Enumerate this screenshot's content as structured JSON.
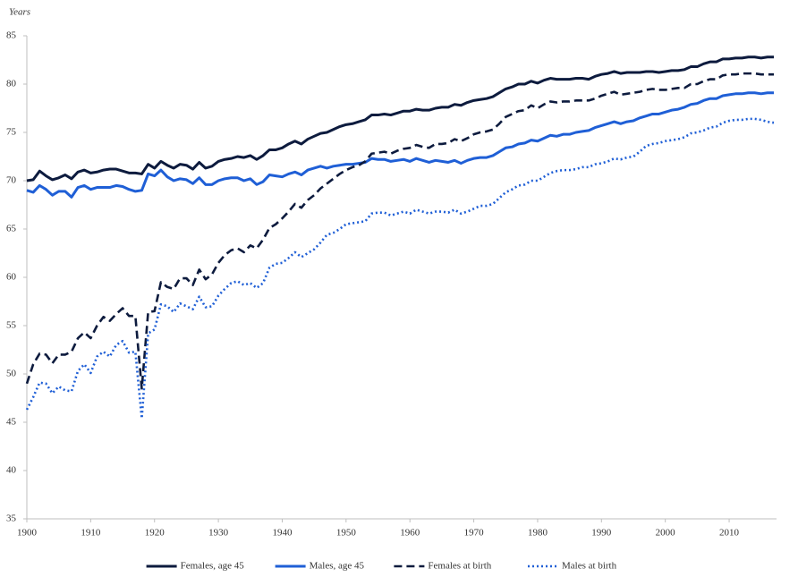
{
  "chart_data": {
    "type": "line",
    "y_label": "Years",
    "x": [
      1900,
      1901,
      1902,
      1903,
      1904,
      1905,
      1906,
      1907,
      1908,
      1909,
      1910,
      1911,
      1912,
      1913,
      1914,
      1915,
      1916,
      1917,
      1918,
      1919,
      1920,
      1921,
      1922,
      1923,
      1924,
      1925,
      1926,
      1927,
      1928,
      1929,
      1930,
      1931,
      1932,
      1933,
      1934,
      1935,
      1936,
      1937,
      1938,
      1939,
      1940,
      1941,
      1942,
      1943,
      1944,
      1945,
      1946,
      1947,
      1948,
      1949,
      1950,
      1951,
      1952,
      1953,
      1954,
      1955,
      1956,
      1957,
      1958,
      1959,
      1960,
      1961,
      1962,
      1963,
      1964,
      1965,
      1966,
      1967,
      1968,
      1969,
      1970,
      1971,
      1972,
      1973,
      1974,
      1975,
      1976,
      1977,
      1978,
      1979,
      1980,
      1981,
      1982,
      1983,
      1984,
      1985,
      1986,
      1987,
      1988,
      1989,
      1990,
      1991,
      1992,
      1993,
      1994,
      1995,
      1996,
      1997,
      1998,
      1999,
      2000,
      2001,
      2002,
      2003,
      2004,
      2005,
      2006,
      2007,
      2008,
      2009,
      2010,
      2011,
      2012,
      2013,
      2014,
      2015,
      2016,
      2017
    ],
    "series": [
      {
        "name": "Females, age 45",
        "color": "#0d1b3e",
        "style": "solid",
        "values": [
          70.0,
          70.1,
          71.0,
          70.5,
          70.1,
          70.3,
          70.6,
          70.2,
          70.9,
          71.1,
          70.8,
          70.9,
          71.1,
          71.2,
          71.2,
          71.0,
          70.8,
          70.8,
          70.7,
          71.7,
          71.3,
          72.0,
          71.6,
          71.3,
          71.7,
          71.6,
          71.2,
          71.9,
          71.3,
          71.5,
          72.0,
          72.2,
          72.3,
          72.5,
          72.4,
          72.6,
          72.2,
          72.6,
          73.2,
          73.2,
          73.4,
          73.8,
          74.1,
          73.8,
          74.3,
          74.6,
          74.9,
          75.0,
          75.3,
          75.6,
          75.8,
          75.9,
          76.1,
          76.3,
          76.8,
          76.8,
          76.9,
          76.8,
          77.0,
          77.2,
          77.2,
          77.4,
          77.3,
          77.3,
          77.5,
          77.6,
          77.6,
          77.9,
          77.8,
          78.1,
          78.3,
          78.4,
          78.5,
          78.7,
          79.1,
          79.5,
          79.7,
          80.0,
          80.0,
          80.3,
          80.1,
          80.4,
          80.6,
          80.5,
          80.5,
          80.5,
          80.6,
          80.6,
          80.5,
          80.8,
          81.0,
          81.1,
          81.3,
          81.1,
          81.2,
          81.2,
          81.2,
          81.3,
          81.3,
          81.2,
          81.3,
          81.4,
          81.4,
          81.5,
          81.8,
          81.8,
          82.1,
          82.3,
          82.3,
          82.6,
          82.6,
          82.7,
          82.7,
          82.8,
          82.8,
          82.7,
          82.8,
          82.8
        ]
      },
      {
        "name": "Males, age 45",
        "color": "#1f5fd6",
        "style": "solid",
        "values": [
          69.0,
          68.8,
          69.5,
          69.1,
          68.5,
          68.9,
          68.9,
          68.3,
          69.3,
          69.5,
          69.1,
          69.3,
          69.3,
          69.3,
          69.5,
          69.4,
          69.1,
          68.9,
          69.0,
          70.7,
          70.5,
          71.1,
          70.4,
          70.0,
          70.2,
          70.1,
          69.7,
          70.3,
          69.6,
          69.6,
          70.0,
          70.2,
          70.3,
          70.3,
          70.0,
          70.2,
          69.6,
          69.9,
          70.6,
          70.5,
          70.4,
          70.7,
          70.9,
          70.6,
          71.1,
          71.3,
          71.5,
          71.3,
          71.5,
          71.6,
          71.7,
          71.7,
          71.8,
          71.9,
          72.3,
          72.2,
          72.2,
          72.0,
          72.1,
          72.2,
          72.0,
          72.3,
          72.1,
          71.9,
          72.1,
          72.0,
          71.9,
          72.1,
          71.8,
          72.1,
          72.3,
          72.4,
          72.4,
          72.6,
          73.0,
          73.4,
          73.5,
          73.8,
          73.9,
          74.2,
          74.1,
          74.4,
          74.7,
          74.6,
          74.8,
          74.8,
          75.0,
          75.1,
          75.2,
          75.5,
          75.7,
          75.9,
          76.1,
          75.9,
          76.1,
          76.2,
          76.5,
          76.7,
          76.9,
          76.9,
          77.1,
          77.3,
          77.4,
          77.6,
          77.9,
          78.0,
          78.3,
          78.5,
          78.5,
          78.8,
          78.9,
          79.0,
          79.0,
          79.1,
          79.1,
          79.0,
          79.1,
          79.1
        ]
      },
      {
        "name": "Females at birth",
        "color": "#0d1b3e",
        "style": "dashed",
        "values": [
          49.0,
          51.0,
          52.1,
          52.0,
          51.1,
          52.0,
          52.0,
          52.3,
          53.7,
          54.3,
          53.7,
          55.0,
          55.9,
          55.5,
          56.2,
          56.8,
          56.0,
          56.0,
          48.5,
          56.4,
          56.5,
          59.5,
          59.0,
          58.8,
          59.9,
          59.9,
          59.2,
          60.8,
          59.8,
          60.3,
          61.5,
          62.3,
          62.8,
          63.0,
          62.6,
          63.3,
          63.0,
          63.9,
          65.1,
          65.5,
          66.1,
          66.8,
          67.6,
          67.2,
          68.0,
          68.5,
          69.2,
          69.7,
          70.2,
          70.7,
          71.1,
          71.4,
          71.6,
          72.0,
          72.8,
          72.9,
          73.0,
          72.8,
          73.1,
          73.3,
          73.4,
          73.7,
          73.5,
          73.4,
          73.8,
          73.8,
          73.9,
          74.3,
          74.1,
          74.4,
          74.8,
          75.0,
          75.1,
          75.3,
          75.9,
          76.6,
          76.9,
          77.2,
          77.3,
          77.8,
          77.5,
          77.9,
          78.2,
          78.1,
          78.2,
          78.2,
          78.3,
          78.3,
          78.3,
          78.5,
          78.8,
          79.0,
          79.2,
          78.9,
          79.0,
          79.1,
          79.2,
          79.4,
          79.5,
          79.4,
          79.4,
          79.5,
          79.6,
          79.6,
          80.0,
          80.0,
          80.3,
          80.5,
          80.5,
          80.9,
          81.0,
          81.0,
          81.1,
          81.1,
          81.1,
          81.0,
          81.0,
          81.0
        ]
      },
      {
        "name": "Males at birth",
        "color": "#1f5fd6",
        "style": "dotted",
        "values": [
          46.3,
          47.6,
          49.1,
          49.0,
          48.0,
          48.7,
          48.3,
          48.2,
          50.3,
          51.0,
          50.1,
          51.8,
          52.3,
          51.8,
          53.0,
          53.4,
          52.2,
          52.3,
          45.4,
          54.2,
          54.6,
          57.2,
          57.0,
          56.4,
          57.3,
          57.0,
          56.7,
          58.0,
          56.9,
          57.0,
          58.1,
          58.8,
          59.4,
          59.6,
          59.2,
          59.4,
          58.9,
          59.4,
          61.0,
          61.4,
          61.5,
          62.0,
          62.6,
          62.1,
          62.5,
          62.9,
          63.6,
          64.4,
          64.6,
          65.0,
          65.5,
          65.6,
          65.7,
          65.8,
          66.6,
          66.7,
          66.7,
          66.4,
          66.6,
          66.8,
          66.6,
          67.0,
          66.8,
          66.6,
          66.8,
          66.8,
          66.7,
          67.0,
          66.6,
          66.8,
          67.1,
          67.4,
          67.4,
          67.6,
          68.2,
          68.8,
          69.1,
          69.5,
          69.6,
          70.0,
          70.0,
          70.4,
          70.8,
          71.0,
          71.1,
          71.1,
          71.2,
          71.4,
          71.4,
          71.7,
          71.8,
          72.0,
          72.3,
          72.2,
          72.4,
          72.5,
          73.0,
          73.6,
          73.8,
          73.9,
          74.1,
          74.2,
          74.3,
          74.5,
          74.9,
          75.0,
          75.2,
          75.5,
          75.6,
          76.0,
          76.2,
          76.3,
          76.3,
          76.4,
          76.4,
          76.3,
          76.1,
          76.0
        ]
      }
    ],
    "xlim": [
      1900,
      2017
    ],
    "xticks": [
      1900,
      1910,
      1920,
      1930,
      1940,
      1950,
      1960,
      1970,
      1980,
      1990,
      2000,
      2010
    ],
    "ylim": [
      35,
      85
    ],
    "yticks": [
      35,
      40,
      45,
      50,
      55,
      60,
      65,
      70,
      75,
      80,
      85
    ],
    "grid": false,
    "legend": "bottom"
  }
}
